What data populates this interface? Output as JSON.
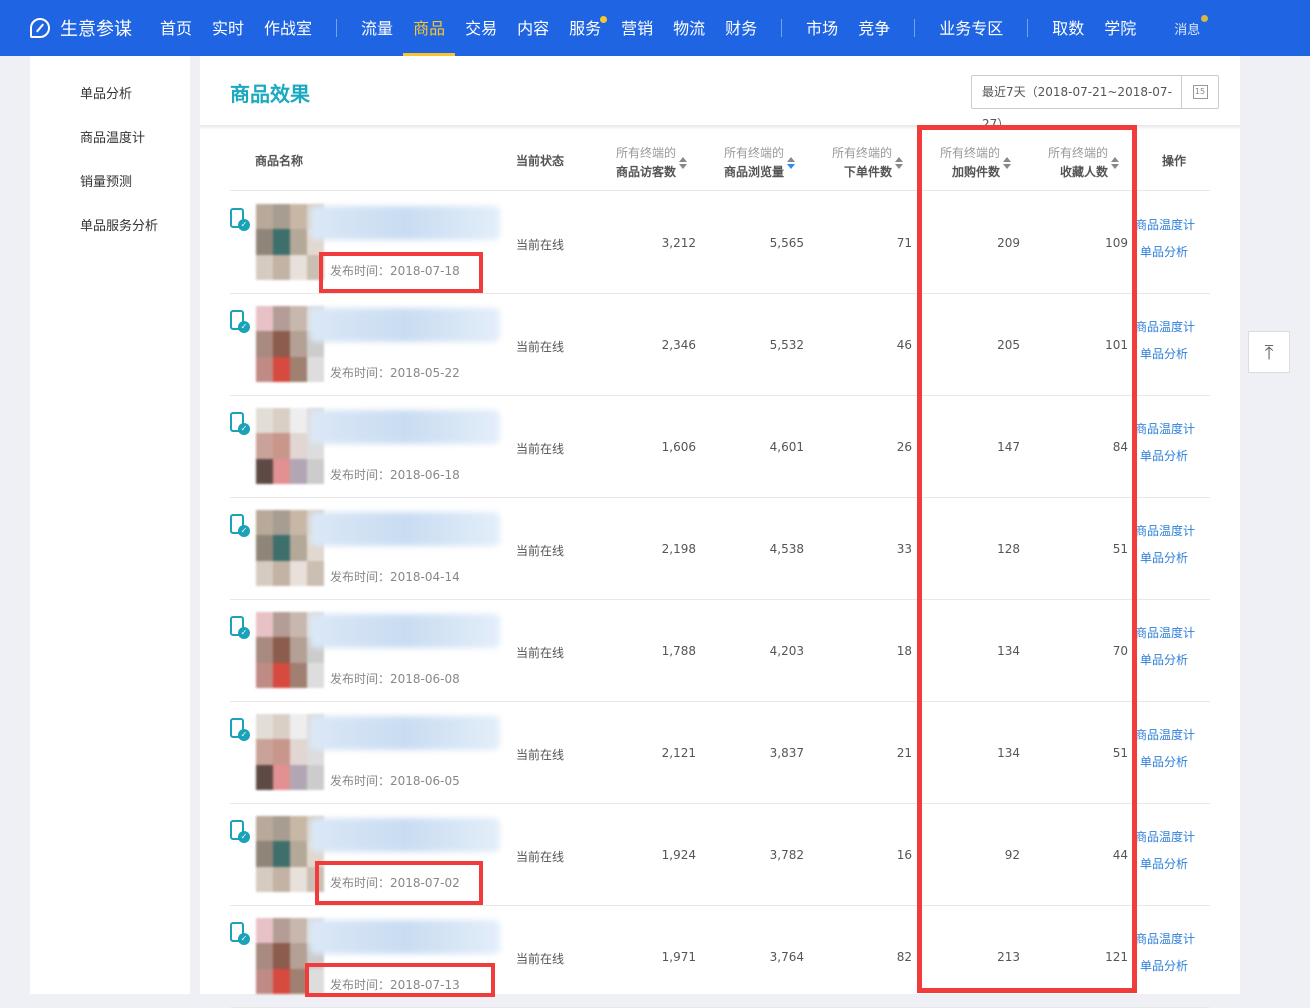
{
  "nav": {
    "brand": "生意参谋",
    "items": [
      {
        "label": "首页"
      },
      {
        "label": "实时"
      },
      {
        "label": "作战室"
      },
      {
        "label": "流量"
      },
      {
        "label": "商品",
        "active": true
      },
      {
        "label": "交易"
      },
      {
        "label": "内容"
      },
      {
        "label": "服务",
        "dot": true
      },
      {
        "label": "营销"
      },
      {
        "label": "物流"
      },
      {
        "label": "财务"
      },
      {
        "label": "市场"
      },
      {
        "label": "竞争"
      },
      {
        "label": "业务专区"
      },
      {
        "label": "取数"
      },
      {
        "label": "学院"
      }
    ],
    "message": "消息",
    "accent": "#1f64e3",
    "active_color": "#f7c62f"
  },
  "sidebar": {
    "items": [
      "单品分析",
      "商品温度计",
      "销量预测",
      "单品服务分析"
    ]
  },
  "page": {
    "title": "商品效果",
    "date_range": "最近7天（2018-07-21~2018-07-27）",
    "calendar_day": "15"
  },
  "table": {
    "headers": {
      "name": "商品名称",
      "status": "当前状态",
      "prefix": "所有终端的",
      "visitors": "商品访客数",
      "views": "商品浏览量",
      "orders": "下单件数",
      "cart": "加购件数",
      "fav": "收藏人数",
      "action": "操作"
    },
    "actions": [
      "商品温度计",
      "单品分析"
    ],
    "rows": [
      {
        "publish": "发布时间：2018-07-18",
        "status": "当前在线",
        "visitors": "3,212",
        "views": "5,565",
        "orders": "71",
        "cart": "209",
        "fav": "109"
      },
      {
        "publish": "发布时间：2018-05-22",
        "status": "当前在线",
        "visitors": "2,346",
        "views": "5,532",
        "orders": "46",
        "cart": "205",
        "fav": "101"
      },
      {
        "publish": "发布时间：2018-06-18",
        "status": "当前在线",
        "visitors": "1,606",
        "views": "4,601",
        "orders": "26",
        "cart": "147",
        "fav": "84"
      },
      {
        "publish": "发布时间：2018-04-14",
        "status": "当前在线",
        "visitors": "2,198",
        "views": "4,538",
        "orders": "33",
        "cart": "128",
        "fav": "51"
      },
      {
        "publish": "发布时间：2018-06-08",
        "status": "当前在线",
        "visitors": "1,788",
        "views": "4,203",
        "orders": "18",
        "cart": "134",
        "fav": "70"
      },
      {
        "publish": "发布时间：2018-06-05",
        "status": "当前在线",
        "visitors": "2,121",
        "views": "3,837",
        "orders": "21",
        "cart": "134",
        "fav": "51"
      },
      {
        "publish": "发布时间：2018-07-02",
        "status": "当前在线",
        "visitors": "1,924",
        "views": "3,782",
        "orders": "16",
        "cart": "92",
        "fav": "44"
      },
      {
        "publish": "发布时间：2018-07-13",
        "status": "当前在线",
        "visitors": "1,971",
        "views": "3,764",
        "orders": "82",
        "cart": "213",
        "fav": "121"
      }
    ]
  },
  "annotation_color": "#f23b3b"
}
